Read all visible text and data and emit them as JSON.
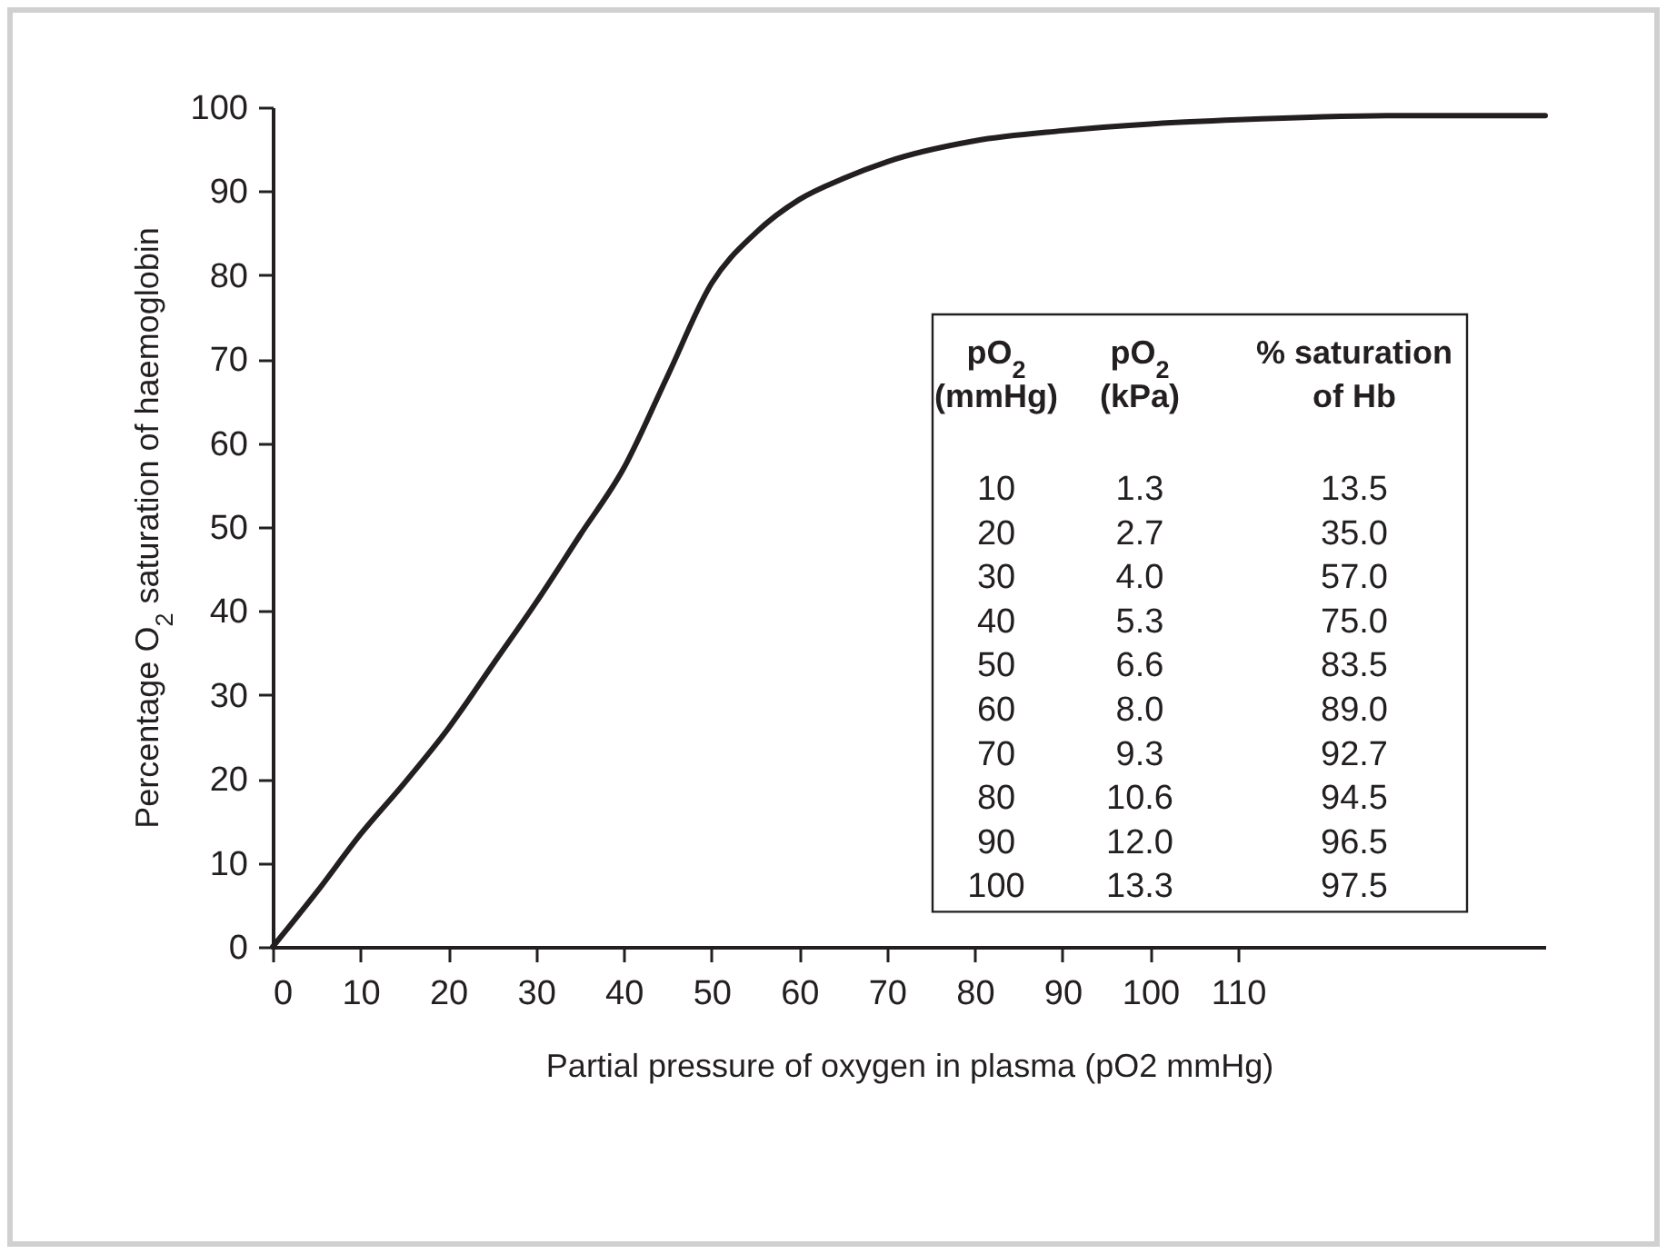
{
  "chart_data": {
    "type": "line",
    "xlabel": "Partial pressure of oxygen in plasma (pO2 mmHg)",
    "ylabel": "Percentage O$_{2}$ saturation of haemoglobin",
    "x": [
      0,
      5,
      10,
      15,
      20,
      25,
      30,
      35,
      40,
      45,
      50,
      55,
      60,
      65,
      70,
      80,
      90,
      100,
      110,
      128,
      145
    ],
    "series": [
      {
        "color": "#231f20",
        "values": [
          0,
          6.5,
          13.4,
          19.5,
          26,
          33.5,
          41,
          49,
          57,
          68,
          79,
          85,
          89,
          91.5,
          93.5,
          96,
          97.2,
          98,
          98.5,
          99,
          99
        ]
      }
    ],
    "xlim": [
      0,
      145
    ],
    "xticks": [
      0,
      10,
      20,
      30,
      40,
      50,
      60,
      70,
      80,
      90,
      100,
      110
    ],
    "ylim": [
      0,
      100
    ],
    "yticks": [
      0,
      10,
      20,
      30,
      40,
      50,
      60,
      70,
      80,
      90,
      100
    ],
    "line_style": "solid",
    "annotations": [
      "pO$_{2}$",
      "pO$_{2}$",
      "% saturation",
      "(mmHg)",
      "(kPa)",
      "of Hb",
      "10",
      "1.3",
      "13.5",
      "20",
      "2.7",
      "35.0",
      "30",
      "4.0",
      "57.0",
      "40",
      "5.3",
      "75.0",
      "50",
      "6.6",
      "83.5",
      "60",
      "8.0",
      "89.0",
      "70",
      "9.3",
      "92.7",
      "80",
      "10.6",
      "94.5",
      "90",
      "12.0",
      "96.5",
      "100",
      "13.3",
      "97.5"
    ]
  }
}
